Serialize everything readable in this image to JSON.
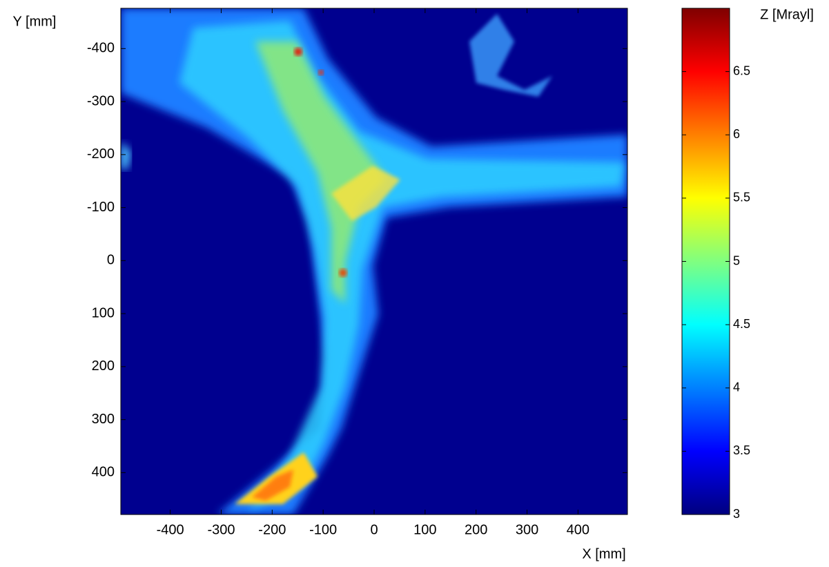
{
  "chart_data": {
    "type": "heatmap",
    "x_label": "X [mm]",
    "y_label": "Y [mm]",
    "colorbar_label": "Z [Mrayl]",
    "xlim": [
      -497,
      497
    ],
    "ylim": [
      -476,
      479
    ],
    "y_inverted": true,
    "xticks": [
      -400,
      -300,
      -200,
      -100,
      0,
      100,
      200,
      300,
      400
    ],
    "yticks": [
      -400,
      -300,
      -200,
      -100,
      0,
      100,
      200,
      300,
      400
    ],
    "colormap": "jet",
    "clim": [
      3,
      7
    ],
    "cticks": [
      3,
      3.5,
      4,
      4.5,
      5,
      5.5,
      6,
      6.5
    ]
  }
}
